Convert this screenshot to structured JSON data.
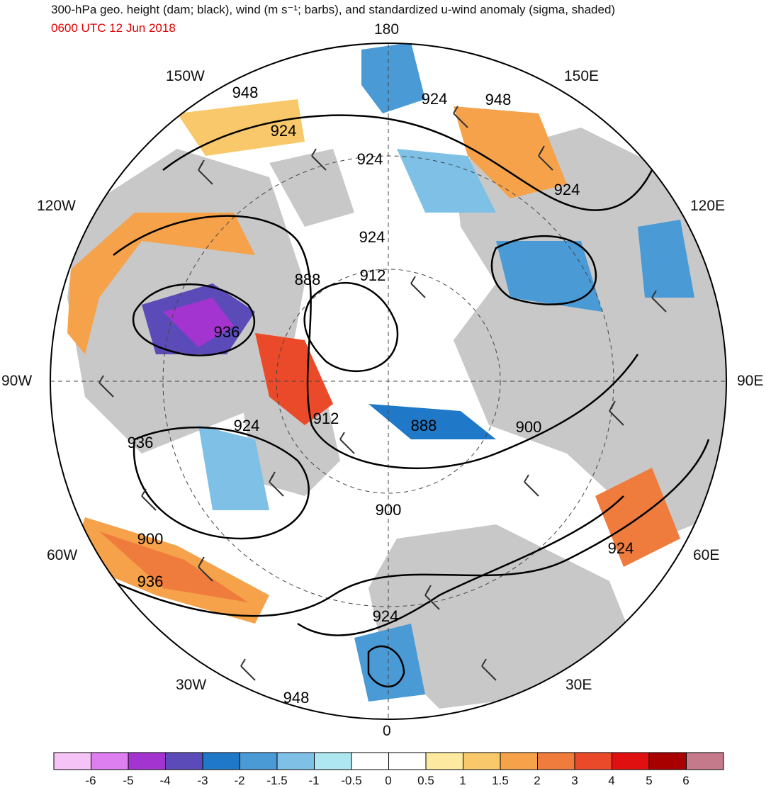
{
  "title": "300-hPa geo. height (dam; black), wind (m s⁻¹; barbs), and standardized u-wind anomaly (sigma, shaded)",
  "valid_time": "0600 UTC 12 Jun 2018",
  "longitude_labels": {
    "top": "180",
    "top_left": "150W",
    "top_right": "150E",
    "upper_left": "120W",
    "upper_right": "120E",
    "left": "90W",
    "right": "90E",
    "lower_left": "60W",
    "lower_right": "60E",
    "bottom_left": "30W",
    "bottom_right": "30E",
    "bottom": "0"
  },
  "contour_labels": [
    "948",
    "924",
    "948",
    "924",
    "924",
    "924",
    "924",
    "912",
    "888",
    "936",
    "924",
    "912",
    "888",
    "900",
    "936",
    "900",
    "900",
    "924",
    "936",
    "924",
    "948"
  ],
  "colorbar": {
    "labels": [
      "-6",
      "-5",
      "-4",
      "-3",
      "-2",
      "-1.5",
      "-1",
      "-0.5",
      "0",
      "0.5",
      "1",
      "1.5",
      "2",
      "3",
      "4",
      "5",
      "6"
    ],
    "colors": [
      "#f6c3f6",
      "#dd7ff0",
      "#a334d0",
      "#5b4bb8",
      "#1f78c8",
      "#4a9ad6",
      "#7ec0e6",
      "#aee6f2",
      "#ffffff",
      "#ffffff",
      "#fde9a0",
      "#f8c86a",
      "#f5a24a",
      "#ef7c3c",
      "#ea4a2a",
      "#e01010",
      "#a80000",
      "#c47a8a"
    ]
  },
  "land_color": "#c8c8c8",
  "contour_color": "#000000",
  "barb_color": "#333333"
}
